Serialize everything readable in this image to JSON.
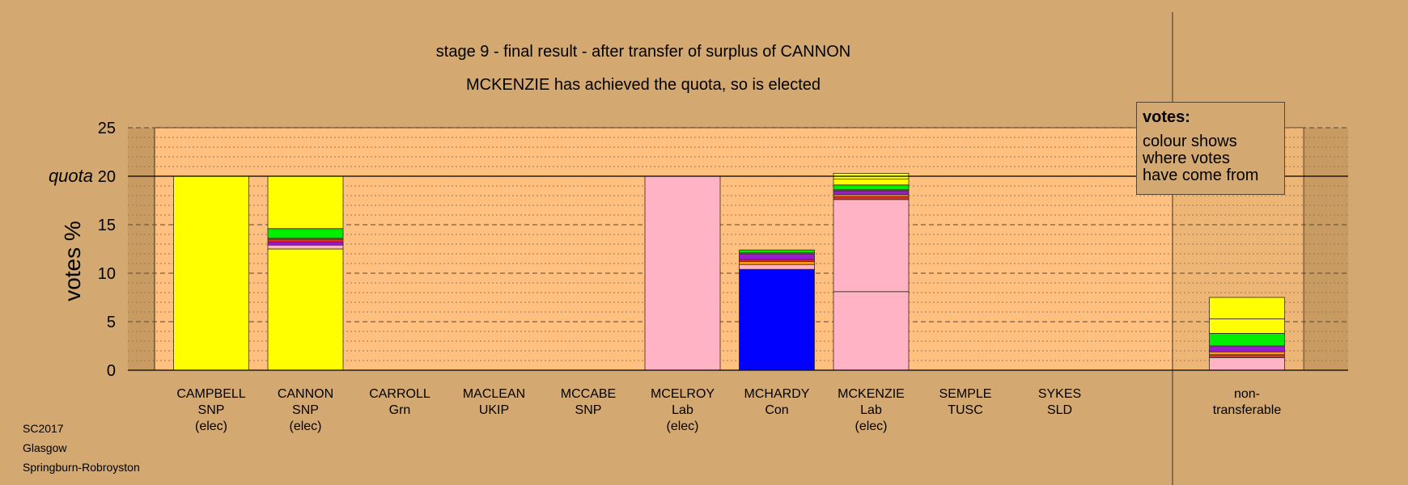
{
  "chart_data": {
    "type": "bar",
    "stacked": true,
    "title": "stage 9 - final result - after transfer of surplus of CANNON",
    "subtitle": "MCKENZIE has achieved the quota, so is elected",
    "ylabel": "votes %",
    "quota_label": "quota",
    "quota": 20,
    "ylim": [
      0,
      25
    ],
    "yticks": [
      0,
      5,
      10,
      15,
      20,
      25
    ],
    "grid": true,
    "legend": {
      "title": "votes:",
      "lines": [
        "colour shows",
        "where votes",
        "have come from"
      ],
      "placement": "top-right"
    },
    "colors": {
      "SNP": "#ffff00",
      "Lab": "#ffb3c4",
      "Con": "#0000ff",
      "Grn": "#00ee00",
      "UKIP": "#9a1acd",
      "TUSC": "#e0302a",
      "SLD": "#ff9a1a",
      "Other": "#b09a8a"
    },
    "candidates": [
      {
        "name": "CAMPBELL",
        "party": "SNP",
        "status": "(elec)",
        "segments": [
          {
            "from": "SNP",
            "value": 20.0
          }
        ]
      },
      {
        "name": "CANNON",
        "party": "SNP",
        "status": "(elec)",
        "segments": [
          {
            "from": "SNP",
            "value": 12.5
          },
          {
            "from": "Lab",
            "value": 0.4
          },
          {
            "from": "UKIP",
            "value": 0.3
          },
          {
            "from": "TUSC",
            "value": 0.3
          },
          {
            "from": "Other",
            "value": 0.1
          },
          {
            "from": "Grn",
            "value": 1.0
          },
          {
            "from": "SNP",
            "value": 5.4
          }
        ]
      },
      {
        "name": "CARROLL",
        "party": "Grn",
        "status": "",
        "segments": []
      },
      {
        "name": "MACLEAN",
        "party": "UKIP",
        "status": "",
        "segments": []
      },
      {
        "name": "MCCABE",
        "party": "SNP",
        "status": "",
        "segments": []
      },
      {
        "name": "MCELROY",
        "party": "Lab",
        "status": "(elec)",
        "segments": [
          {
            "from": "Lab",
            "value": 20.0
          }
        ]
      },
      {
        "name": "MCHARDY",
        "party": "Con",
        "status": "",
        "segments": [
          {
            "from": "Con",
            "value": 10.4
          },
          {
            "from": "Lab",
            "value": 0.5
          },
          {
            "from": "SLD",
            "value": 0.3
          },
          {
            "from": "TUSC",
            "value": 0.2
          },
          {
            "from": "UKIP",
            "value": 0.6
          },
          {
            "from": "Other",
            "value": 0.1
          },
          {
            "from": "Grn",
            "value": 0.3
          }
        ]
      },
      {
        "name": "MCKENZIE",
        "party": "Lab",
        "status": "(elec)",
        "segments": [
          {
            "from": "Lab",
            "value": 8.1
          },
          {
            "from": "Lab",
            "value": 9.5
          },
          {
            "from": "TUSC",
            "value": 0.3
          },
          {
            "from": "SLD",
            "value": 0.2
          },
          {
            "from": "UKIP",
            "value": 0.4
          },
          {
            "from": "Other",
            "value": 0.1
          },
          {
            "from": "Grn",
            "value": 0.5
          },
          {
            "from": "SNP",
            "value": 0.6
          },
          {
            "from": "SNP",
            "value": 0.6
          }
        ]
      },
      {
        "name": "SEMPLE",
        "party": "TUSC",
        "status": "",
        "segments": []
      },
      {
        "name": "SYKES",
        "party": "SLD",
        "status": "",
        "segments": []
      }
    ],
    "nontransferable": {
      "label_line1": "non-",
      "label_line2": "transferable",
      "segments": [
        {
          "from": "Lab",
          "value": 1.3
        },
        {
          "from": "TUSC",
          "value": 0.3
        },
        {
          "from": "SLD",
          "value": 0.3
        },
        {
          "from": "UKIP",
          "value": 0.6
        },
        {
          "from": "Grn",
          "value": 1.3
        },
        {
          "from": "SNP",
          "value": 1.5
        },
        {
          "from": "SNP",
          "value": 2.2
        }
      ]
    }
  },
  "footer": [
    "SC2017",
    "Glasgow",
    "Springburn-Robroyston"
  ]
}
